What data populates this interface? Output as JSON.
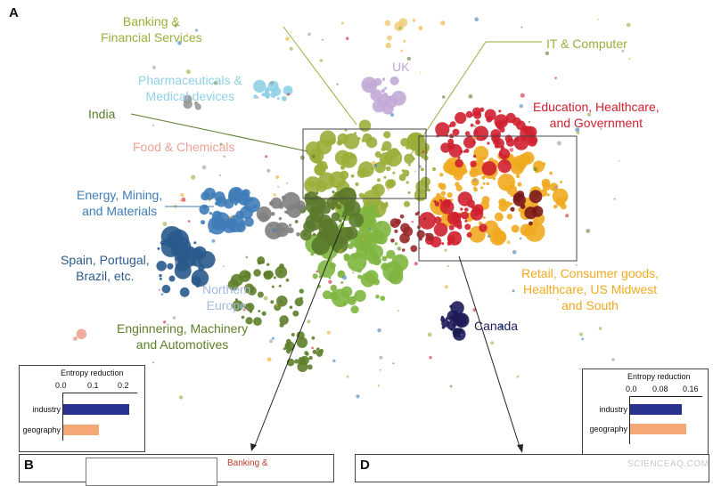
{
  "panels": {
    "a": "A",
    "b": "B",
    "d": "D"
  },
  "labels": {
    "banking": "Banking &\nFinancial Services",
    "it": "IT & Computer",
    "pharma": "Pharmaceuticals &\nMedical devices",
    "uk": "UK",
    "india": "India",
    "education": "Education, Healthcare,\nand Government",
    "food": "Food & Chemicals",
    "energy": "Energy, Mining,\nand Materials",
    "spain": "Spain, Portugal,\nBrazil, etc.",
    "northern": "Northern\nEurope",
    "engineering": "Enginnering, Machinery\nand Automotives",
    "retail": "Retail, Consumer goods,\nHealthcare, US Midwest\nand South",
    "canada": "Canada",
    "banking_cut": "Banking &"
  },
  "colors": {
    "banking": "#9aae3a",
    "it": "#9aae3a",
    "pharma": "#8fd0e6",
    "uk": "#c2aad6",
    "india": "#5b7a2c",
    "education": "#cf2030",
    "food": "#eba393",
    "energy": "#3f7cb8",
    "spain": "#2a5a8c",
    "northern": "#a3b9dc",
    "engineering": "#5e7f2a",
    "retail": "#efaa20",
    "canada": "#1d1b58",
    "industry_bar": "#2a3290",
    "geography_bar": "#f3a876"
  },
  "chart_data": [
    {
      "type": "bar",
      "orientation": "horizontal",
      "title": "Entropy reduction",
      "categories": [
        "industry",
        "geography"
      ],
      "values": [
        0.22,
        0.12
      ],
      "xlim": [
        0,
        0.25
      ],
      "ticks": [
        "0.0",
        "0.1",
        "0.2"
      ],
      "tick_values": [
        0,
        0.1,
        0.2
      ]
    },
    {
      "type": "bar",
      "orientation": "horizontal",
      "title": "Entropy reduction",
      "categories": [
        "industry",
        "geography"
      ],
      "values": [
        0.12,
        0.13
      ],
      "xlim": [
        0,
        0.17
      ],
      "ticks": [
        "0.0",
        "0.08",
        "0.16"
      ],
      "tick_values": [
        0,
        0.08,
        0.16
      ]
    }
  ],
  "watermark": "SCIENCEAQ.COM"
}
